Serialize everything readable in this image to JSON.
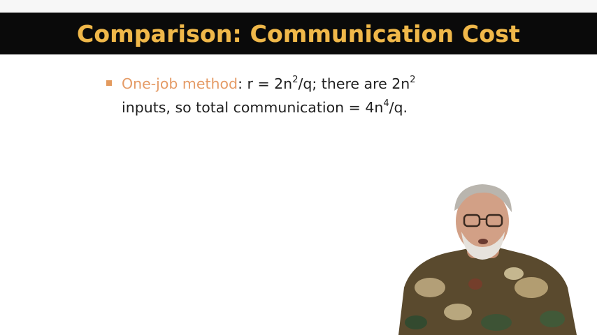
{
  "slide": {
    "title": "Comparison: Communication Cost",
    "bullets": [
      {
        "highlight": "One-job method",
        "line1_a": ": r = 2n",
        "sup1": "2",
        "line1_b": "/q; there are 2n",
        "sup2": "2",
        "line2_a": "inputs, so total communication = 4n",
        "sup3": "4",
        "line2_b": "/q."
      }
    ]
  },
  "colors": {
    "title_bar": "#0a0a0a",
    "title_text": "#f0b84a",
    "highlight": "#e59b66",
    "bullet_marker": "#e39a5e"
  },
  "presenter": {
    "icon": "presenter-video-icon"
  }
}
